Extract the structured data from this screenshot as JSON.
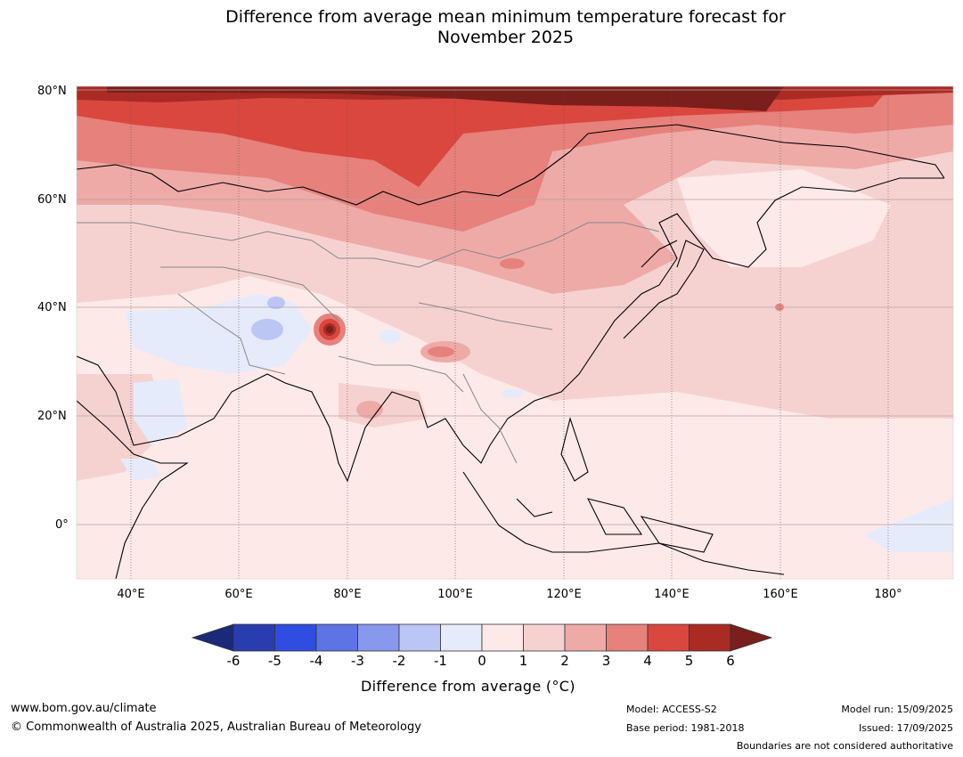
{
  "header": {
    "title_line1": "Difference from average mean minimum temperature forecast for",
    "title_line2": "November 2025"
  },
  "map": {
    "lat_labels": [
      "80°N",
      "60°N",
      "40°N",
      "20°N",
      "0°"
    ],
    "lon_labels": [
      "40°E",
      "60°E",
      "80°E",
      "100°E",
      "120°E",
      "140°E",
      "160°E",
      "180°"
    ],
    "region": "Asia"
  },
  "colorbar": {
    "title": "Difference from average (°C)",
    "ticks": [
      "-6",
      "-5",
      "-4",
      "-3",
      "-2",
      "-1",
      "0",
      "1",
      "2",
      "3",
      "4",
      "5",
      "6"
    ],
    "colors": [
      "#1b2a78",
      "#2a3db0",
      "#2f4de0",
      "#5d73e6",
      "#8898ec",
      "#bcc6f5",
      "#e6ebfb",
      "#fde9e8",
      "#f5d2d0",
      "#eeaaa6",
      "#e6817b",
      "#d9473f",
      "#aa2b24",
      "#7a1f1b"
    ]
  },
  "footer": {
    "site": "www.bom.gov.au/climate",
    "copyright": "© Commonwealth of Australia 2025, Australian Bureau of Meteorology",
    "model": "Model: ACCESS-S2",
    "base_period": "Base period: 1981-2018",
    "model_run": "Model run: 15/09/2025",
    "issued": "Issued: 17/09/2025",
    "disclaimer": "Boundaries are not considered authoritative"
  }
}
